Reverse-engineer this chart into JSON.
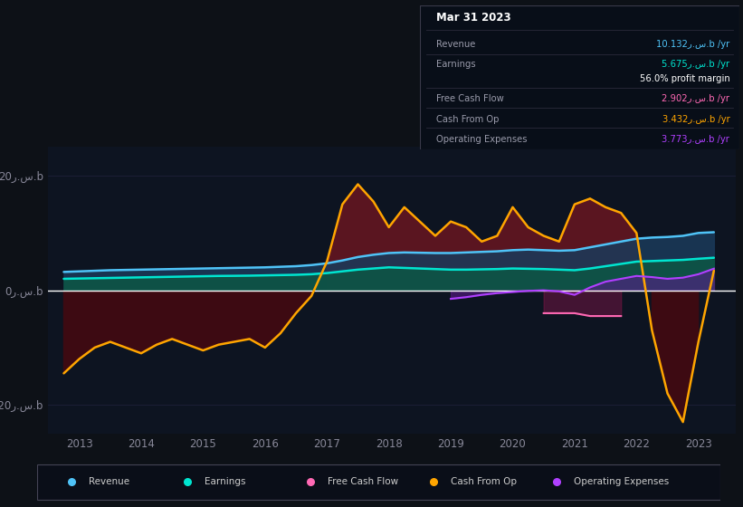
{
  "bg_color": "#0d1117",
  "plot_bg_color": "#0d1421",
  "colors": {
    "revenue": "#4fc3f7",
    "earnings": "#00e5d0",
    "free_cash_flow": "#ff69b4",
    "cash_from_op": "#ffa500",
    "operating_expenses": "#b040ff"
  },
  "xlim_start": 2012.5,
  "xlim_end": 2023.6,
  "ylim": [
    -25,
    25
  ],
  "xticks": [
    2013,
    2014,
    2015,
    2016,
    2017,
    2018,
    2019,
    2020,
    2021,
    2022,
    2023
  ],
  "ytick_positions": [
    -20,
    0,
    20
  ],
  "ytick_labels_left": [
    "-20ر.س.b",
    "0ر.س.b",
    "20ر.س.b"
  ],
  "info_box": {
    "date": "Mar 31 2023",
    "rows": [
      {
        "label": "Revenue",
        "value": "10.132ر.س.b /yr",
        "color": "#4fc3f7"
      },
      {
        "label": "Earnings",
        "value": "5.675ر.س.b /yr",
        "color": "#00e5d0"
      },
      {
        "label": "",
        "value": "56.0% profit margin",
        "color": "#ffffff"
      },
      {
        "label": "Free Cash Flow",
        "value": "2.902ر.س.b /yr",
        "color": "#ff69b4"
      },
      {
        "label": "Cash From Op",
        "value": "3.432ر.س.b /yr",
        "color": "#ffa500"
      },
      {
        "label": "Operating Expenses",
        "value": "3.773ر.س.b /yr",
        "color": "#b040ff"
      }
    ]
  },
  "legend": [
    "Revenue",
    "Earnings",
    "Free Cash Flow",
    "Cash From Op",
    "Operating Expenses"
  ],
  "years": [
    2012.75,
    2013.0,
    2013.25,
    2013.5,
    2013.75,
    2014.0,
    2014.25,
    2014.5,
    2014.75,
    2015.0,
    2015.25,
    2015.5,
    2015.75,
    2016.0,
    2016.25,
    2016.5,
    2016.75,
    2017.0,
    2017.25,
    2017.5,
    2017.75,
    2018.0,
    2018.25,
    2018.5,
    2018.75,
    2019.0,
    2019.25,
    2019.5,
    2019.75,
    2020.0,
    2020.25,
    2020.5,
    2020.75,
    2021.0,
    2021.25,
    2021.5,
    2021.75,
    2022.0,
    2022.25,
    2022.5,
    2022.75,
    2023.0,
    2023.25
  ],
  "revenue": [
    3.2,
    3.3,
    3.4,
    3.5,
    3.55,
    3.6,
    3.65,
    3.7,
    3.75,
    3.8,
    3.85,
    3.9,
    3.95,
    4.0,
    4.1,
    4.2,
    4.4,
    4.7,
    5.2,
    5.8,
    6.2,
    6.5,
    6.6,
    6.55,
    6.5,
    6.5,
    6.6,
    6.7,
    6.8,
    7.0,
    7.1,
    7.0,
    6.9,
    7.0,
    7.5,
    8.0,
    8.5,
    9.0,
    9.2,
    9.3,
    9.5,
    10.0,
    10.132
  ],
  "earnings": [
    2.0,
    2.05,
    2.1,
    2.15,
    2.2,
    2.25,
    2.3,
    2.35,
    2.4,
    2.45,
    2.5,
    2.52,
    2.55,
    2.6,
    2.65,
    2.7,
    2.8,
    3.0,
    3.3,
    3.6,
    3.8,
    4.0,
    3.9,
    3.8,
    3.7,
    3.6,
    3.6,
    3.65,
    3.7,
    3.8,
    3.75,
    3.7,
    3.6,
    3.5,
    3.8,
    4.2,
    4.6,
    5.0,
    5.1,
    5.2,
    5.3,
    5.5,
    5.675
  ],
  "cash_from_op": [
    -14.5,
    -12.0,
    -10.0,
    -9.0,
    -10.0,
    -11.0,
    -9.5,
    -8.5,
    -9.5,
    -10.5,
    -9.5,
    -9.0,
    -8.5,
    -10.0,
    -7.5,
    -4.0,
    -1.0,
    5.0,
    15.0,
    18.5,
    15.5,
    11.0,
    14.5,
    12.0,
    9.5,
    12.0,
    11.0,
    8.5,
    9.5,
    14.5,
    11.0,
    9.5,
    8.5,
    15.0,
    16.0,
    14.5,
    13.5,
    10.0,
    -7.0,
    -18.0,
    -23.0,
    -9.0,
    3.432
  ],
  "operating_expenses": [
    null,
    null,
    null,
    null,
    null,
    null,
    null,
    null,
    null,
    null,
    null,
    null,
    null,
    null,
    null,
    null,
    null,
    null,
    null,
    null,
    null,
    null,
    null,
    null,
    null,
    -1.5,
    -1.2,
    -0.8,
    -0.5,
    -0.3,
    -0.1,
    0.0,
    -0.2,
    -0.8,
    0.5,
    1.5,
    2.0,
    2.5,
    2.3,
    2.0,
    2.2,
    2.8,
    3.773
  ],
  "free_cash_flow": [
    null,
    null,
    null,
    null,
    null,
    null,
    null,
    null,
    null,
    null,
    null,
    null,
    null,
    null,
    null,
    null,
    null,
    null,
    null,
    null,
    null,
    null,
    null,
    null,
    null,
    null,
    null,
    null,
    null,
    null,
    null,
    null,
    null,
    null,
    null,
    null,
    null,
    null,
    null,
    null,
    null,
    null,
    2.902
  ]
}
